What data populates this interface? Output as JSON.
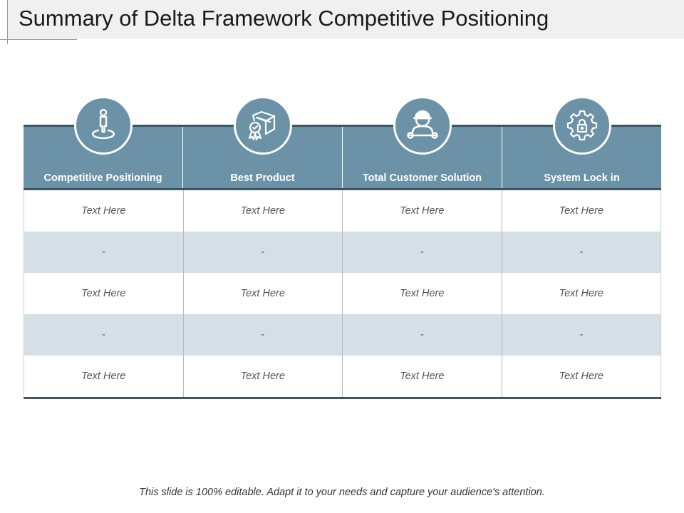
{
  "slide": {
    "title": "Summary of Delta Framework Competitive Positioning",
    "footer": "This slide is 100% editable. Adapt it to your needs and capture your audience's attention."
  },
  "table": {
    "columns": [
      {
        "label": "Competitive Positioning",
        "icon": "person-on-target-icon"
      },
      {
        "label": "Best Product",
        "icon": "box-with-badge-icon"
      },
      {
        "label": "Total Customer Solution",
        "icon": "worker-with-wrench-icon"
      },
      {
        "label": "System Lock in",
        "icon": "gear-lock-icon"
      }
    ],
    "rows": [
      [
        "Text Here",
        "Text Here",
        "Text Here",
        "Text Here"
      ],
      [
        "-",
        "-",
        "-",
        "-"
      ],
      [
        "Text Here",
        "Text Here",
        "Text Here",
        "Text Here"
      ],
      [
        "-",
        "-",
        "-",
        "-"
      ],
      [
        "Text Here",
        "Text Here",
        "Text Here",
        "Text Here"
      ]
    ]
  },
  "colors": {
    "header_bg": "#6b92a6",
    "header_border": "#3f5563",
    "alt_row_bg": "#d4e0e6"
  }
}
